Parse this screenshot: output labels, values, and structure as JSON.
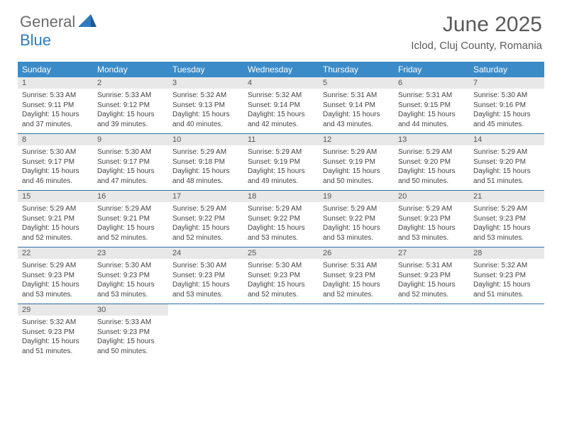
{
  "brand": {
    "part1": "General",
    "part2": "Blue"
  },
  "title": "June 2025",
  "location": "Iclod, Cluj County, Romania",
  "colors": {
    "header_bg": "#3b8bc9",
    "header_text": "#ffffff",
    "daynum_bg": "#e8e8e8",
    "border": "#2f6fa5",
    "brand_blue": "#2f7bbf",
    "brand_gray": "#6b6b6b"
  },
  "day_names": [
    "Sunday",
    "Monday",
    "Tuesday",
    "Wednesday",
    "Thursday",
    "Friday",
    "Saturday"
  ],
  "weeks": [
    [
      {
        "n": "1",
        "sr": "Sunrise: 5:33 AM",
        "ss": "Sunset: 9:11 PM",
        "dl": "Daylight: 15 hours and 37 minutes."
      },
      {
        "n": "2",
        "sr": "Sunrise: 5:33 AM",
        "ss": "Sunset: 9:12 PM",
        "dl": "Daylight: 15 hours and 39 minutes."
      },
      {
        "n": "3",
        "sr": "Sunrise: 5:32 AM",
        "ss": "Sunset: 9:13 PM",
        "dl": "Daylight: 15 hours and 40 minutes."
      },
      {
        "n": "4",
        "sr": "Sunrise: 5:32 AM",
        "ss": "Sunset: 9:14 PM",
        "dl": "Daylight: 15 hours and 42 minutes."
      },
      {
        "n": "5",
        "sr": "Sunrise: 5:31 AM",
        "ss": "Sunset: 9:14 PM",
        "dl": "Daylight: 15 hours and 43 minutes."
      },
      {
        "n": "6",
        "sr": "Sunrise: 5:31 AM",
        "ss": "Sunset: 9:15 PM",
        "dl": "Daylight: 15 hours and 44 minutes."
      },
      {
        "n": "7",
        "sr": "Sunrise: 5:30 AM",
        "ss": "Sunset: 9:16 PM",
        "dl": "Daylight: 15 hours and 45 minutes."
      }
    ],
    [
      {
        "n": "8",
        "sr": "Sunrise: 5:30 AM",
        "ss": "Sunset: 9:17 PM",
        "dl": "Daylight: 15 hours and 46 minutes."
      },
      {
        "n": "9",
        "sr": "Sunrise: 5:30 AM",
        "ss": "Sunset: 9:17 PM",
        "dl": "Daylight: 15 hours and 47 minutes."
      },
      {
        "n": "10",
        "sr": "Sunrise: 5:29 AM",
        "ss": "Sunset: 9:18 PM",
        "dl": "Daylight: 15 hours and 48 minutes."
      },
      {
        "n": "11",
        "sr": "Sunrise: 5:29 AM",
        "ss": "Sunset: 9:19 PM",
        "dl": "Daylight: 15 hours and 49 minutes."
      },
      {
        "n": "12",
        "sr": "Sunrise: 5:29 AM",
        "ss": "Sunset: 9:19 PM",
        "dl": "Daylight: 15 hours and 50 minutes."
      },
      {
        "n": "13",
        "sr": "Sunrise: 5:29 AM",
        "ss": "Sunset: 9:20 PM",
        "dl": "Daylight: 15 hours and 50 minutes."
      },
      {
        "n": "14",
        "sr": "Sunrise: 5:29 AM",
        "ss": "Sunset: 9:20 PM",
        "dl": "Daylight: 15 hours and 51 minutes."
      }
    ],
    [
      {
        "n": "15",
        "sr": "Sunrise: 5:29 AM",
        "ss": "Sunset: 9:21 PM",
        "dl": "Daylight: 15 hours and 52 minutes."
      },
      {
        "n": "16",
        "sr": "Sunrise: 5:29 AM",
        "ss": "Sunset: 9:21 PM",
        "dl": "Daylight: 15 hours and 52 minutes."
      },
      {
        "n": "17",
        "sr": "Sunrise: 5:29 AM",
        "ss": "Sunset: 9:22 PM",
        "dl": "Daylight: 15 hours and 52 minutes."
      },
      {
        "n": "18",
        "sr": "Sunrise: 5:29 AM",
        "ss": "Sunset: 9:22 PM",
        "dl": "Daylight: 15 hours and 53 minutes."
      },
      {
        "n": "19",
        "sr": "Sunrise: 5:29 AM",
        "ss": "Sunset: 9:22 PM",
        "dl": "Daylight: 15 hours and 53 minutes."
      },
      {
        "n": "20",
        "sr": "Sunrise: 5:29 AM",
        "ss": "Sunset: 9:23 PM",
        "dl": "Daylight: 15 hours and 53 minutes."
      },
      {
        "n": "21",
        "sr": "Sunrise: 5:29 AM",
        "ss": "Sunset: 9:23 PM",
        "dl": "Daylight: 15 hours and 53 minutes."
      }
    ],
    [
      {
        "n": "22",
        "sr": "Sunrise: 5:29 AM",
        "ss": "Sunset: 9:23 PM",
        "dl": "Daylight: 15 hours and 53 minutes."
      },
      {
        "n": "23",
        "sr": "Sunrise: 5:30 AM",
        "ss": "Sunset: 9:23 PM",
        "dl": "Daylight: 15 hours and 53 minutes."
      },
      {
        "n": "24",
        "sr": "Sunrise: 5:30 AM",
        "ss": "Sunset: 9:23 PM",
        "dl": "Daylight: 15 hours and 53 minutes."
      },
      {
        "n": "25",
        "sr": "Sunrise: 5:30 AM",
        "ss": "Sunset: 9:23 PM",
        "dl": "Daylight: 15 hours and 52 minutes."
      },
      {
        "n": "26",
        "sr": "Sunrise: 5:31 AM",
        "ss": "Sunset: 9:23 PM",
        "dl": "Daylight: 15 hours and 52 minutes."
      },
      {
        "n": "27",
        "sr": "Sunrise: 5:31 AM",
        "ss": "Sunset: 9:23 PM",
        "dl": "Daylight: 15 hours and 52 minutes."
      },
      {
        "n": "28",
        "sr": "Sunrise: 5:32 AM",
        "ss": "Sunset: 9:23 PM",
        "dl": "Daylight: 15 hours and 51 minutes."
      }
    ],
    [
      {
        "n": "29",
        "sr": "Sunrise: 5:32 AM",
        "ss": "Sunset: 9:23 PM",
        "dl": "Daylight: 15 hours and 51 minutes."
      },
      {
        "n": "30",
        "sr": "Sunrise: 5:33 AM",
        "ss": "Sunset: 9:23 PM",
        "dl": "Daylight: 15 hours and 50 minutes."
      },
      null,
      null,
      null,
      null,
      null
    ]
  ]
}
